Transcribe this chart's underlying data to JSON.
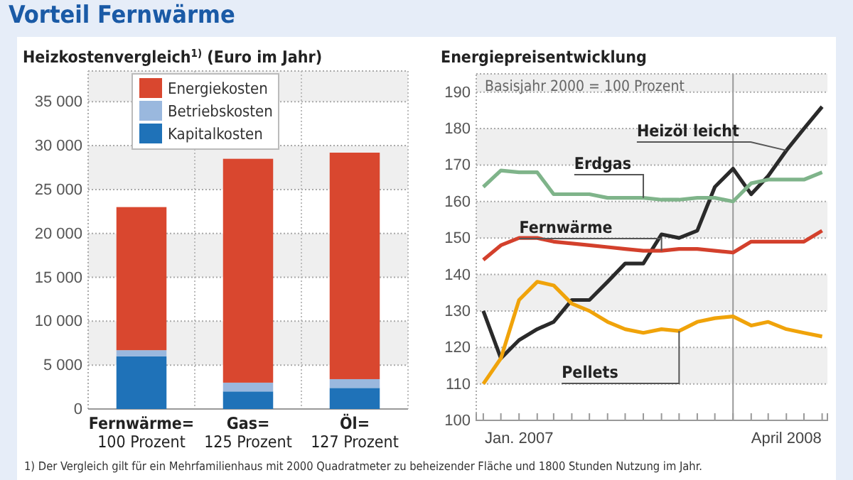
{
  "chart_data": [
    {
      "type": "bar",
      "title": "Vorteil Fernwärme",
      "subtitle": "Heizkostenvergleich$^{1)}$ (Euro im Jahr)",
      "categories": [
        "Fernwärme=\n100 Prozent",
        "Gas=\n125 Prozent",
        "Öl=\n127 Prozent"
      ],
      "stacked": true,
      "series": [
        {
          "name": "Kapitalkosten",
          "color": "#1f72b8",
          "values": [
            6000,
            2000,
            2400
          ]
        },
        {
          "name": "Betriebskosten",
          "color": "#9ab8de",
          "values": [
            700,
            1000,
            1000
          ]
        },
        {
          "name": "Energiekosten",
          "color": "#d9472f",
          "values": [
            16300,
            25500,
            25800
          ]
        }
      ],
      "ylim": [
        0,
        38500
      ],
      "yticks": [
        0,
        {
          "value": 5000,
          "label": "5 000"
        },
        {
          "value": 10000,
          "label": "10 000"
        },
        {
          "value": 15000,
          "label": "15 000"
        },
        {
          "value": 20000,
          "label": "20 000"
        },
        {
          "value": 25000,
          "label": "25 000"
        },
        {
          "value": 30000,
          "label": "30 000"
        },
        {
          "value": 35000,
          "label": "35 000"
        }
      ],
      "grid": "y",
      "legend": "top",
      "annotations": [
        "1) Der Vergleich gilt für ein Mehrfamilienhaus mit 2000 Quadratmeter zu beheizender Fläche und 1800 Stunden Nutzung im Jahr."
      ]
    },
    {
      "type": "line",
      "title": "Energiepreisentwicklung",
      "x": [
        "2006-11",
        "2006-12",
        "2007-01",
        "2007-02",
        "2007-03",
        "2007-04",
        "2007-05",
        "2007-06",
        "2007-07",
        "2007-08",
        "2007-09",
        "2007-10",
        "2007-11",
        "2007-12",
        "2008-01",
        "2008-02",
        "2008-03",
        "2008-04",
        "2008-05",
        "2008-06"
      ],
      "series": [
        {
          "name": "Heizöl leicht",
          "color": "#2a2a2a",
          "values": [
            130,
            117,
            122,
            125,
            127,
            133,
            133,
            138,
            143,
            143,
            151,
            150,
            152,
            164,
            169,
            162,
            167,
            174,
            180,
            186
          ]
        },
        {
          "name": "Erdgas",
          "color": "#7fb48a",
          "values": [
            164,
            168.5,
            168,
            168,
            162,
            162,
            162,
            161,
            161,
            161,
            160.5,
            160.5,
            161,
            161,
            160,
            165,
            166,
            166,
            166,
            168
          ]
        },
        {
          "name": "Fernwärme",
          "color": "#d3402c",
          "values": [
            144,
            148,
            150,
            150,
            149,
            148.5,
            148,
            147.5,
            147,
            146.5,
            146.5,
            147,
            147,
            146.5,
            146,
            149,
            149,
            149,
            149,
            152
          ]
        },
        {
          "name": "Pellets",
          "color": "#f0a30a",
          "values": [
            110,
            117,
            133,
            138,
            137,
            132,
            130,
            127,
            125,
            124,
            125,
            124.5,
            127,
            128,
            128.5,
            126,
            127,
            125,
            124,
            123
          ]
        }
      ],
      "xlim": [
        "2006-10-20",
        "2008-06-10"
      ],
      "xticks": [
        {
          "value": "2006-11",
          "label": null
        },
        {
          "value": "2006-12",
          "label": null
        },
        {
          "value": "2007-01",
          "label": "Jan. 2007"
        },
        {
          "value": "2007-02",
          "label": null
        },
        {
          "value": "2007-03",
          "label": null
        },
        {
          "value": "2007-04",
          "label": null
        },
        {
          "value": "2007-05",
          "label": null
        },
        {
          "value": "2007-06",
          "label": null
        },
        {
          "value": "2007-07",
          "label": null
        },
        {
          "value": "2007-08",
          "label": null
        },
        {
          "value": "2007-09",
          "label": null
        },
        {
          "value": "2007-10",
          "label": null
        },
        {
          "value": "2007-11",
          "label": null
        },
        {
          "value": "2007-12",
          "label": null
        },
        {
          "value": "2008-01",
          "label": null
        },
        {
          "value": "2008-02",
          "label": null
        },
        {
          "value": "2008-03",
          "label": null
        },
        {
          "value": "2008-04",
          "label": "April 2008"
        },
        {
          "value": "2008-05",
          "label": null
        },
        {
          "value": "2008-06",
          "label": null
        }
      ],
      "ylim": [
        100,
        195
      ],
      "yticks": [
        100,
        110,
        120,
        130,
        140,
        150,
        160,
        170,
        180,
        190
      ],
      "grid": "y",
      "ref_lines": [
        {
          "axis": "x",
          "value": "2008-01",
          "color": "#999999"
        }
      ],
      "annotations": [
        "Basisjahr 2000 = 100 Prozent"
      ]
    }
  ]
}
